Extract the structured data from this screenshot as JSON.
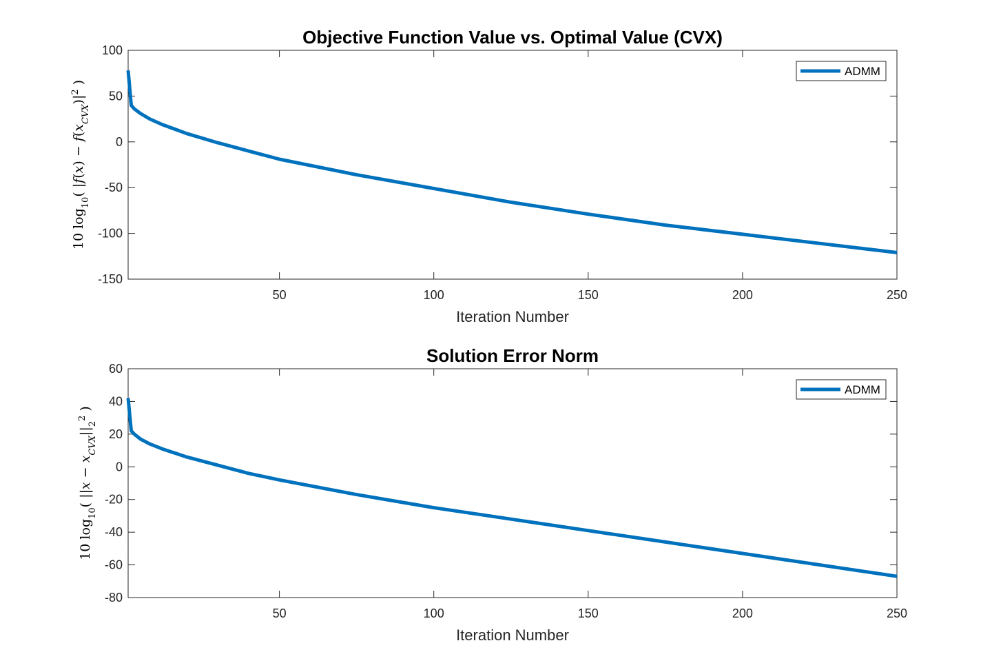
{
  "chart_data": [
    {
      "type": "line",
      "title": "Objective Function Value vs. Optimal Value (CVX)",
      "xlabel": "Iteration Number",
      "ylabel": "10 log10(|f(x) − f(x_CVX)|^2)",
      "xlim": [
        1,
        250
      ],
      "ylim": [
        -150,
        100
      ],
      "xticks": [
        50,
        100,
        150,
        200,
        250
      ],
      "yticks": [
        100,
        50,
        0,
        -50,
        -100,
        -150
      ],
      "grid": false,
      "legend_position": "top-right",
      "series": [
        {
          "name": "ADMM",
          "color": "#0072BD",
          "x": [
            1,
            2,
            3,
            5,
            8,
            12,
            20,
            30,
            40,
            50,
            75,
            100,
            125,
            150,
            175,
            200,
            225,
            250
          ],
          "y": [
            78,
            40,
            36,
            31,
            25,
            19,
            9,
            -1,
            -10,
            -19,
            -36,
            -51,
            -66,
            -79,
            -91,
            -101,
            -111,
            -121
          ]
        }
      ]
    },
    {
      "type": "line",
      "title": "Solution Error Norm",
      "xlabel": "Iteration Number",
      "ylabel": "10 log10(||x − x_CVX||_2^2)",
      "xlim": [
        1,
        250
      ],
      "ylim": [
        -80,
        60
      ],
      "xticks": [
        50,
        100,
        150,
        200,
        250
      ],
      "yticks": [
        60,
        40,
        20,
        0,
        -20,
        -40,
        -60,
        -80
      ],
      "grid": false,
      "legend_position": "top-right",
      "series": [
        {
          "name": "ADMM",
          "color": "#0072BD",
          "x": [
            1,
            2,
            3,
            5,
            8,
            12,
            20,
            30,
            40,
            50,
            75,
            100,
            125,
            150,
            175,
            200,
            225,
            250
          ],
          "y": [
            42,
            22,
            20,
            17,
            14,
            11,
            6,
            1,
            -4,
            -8,
            -17,
            -25,
            -32,
            -39,
            -46,
            -53,
            -60,
            -67
          ]
        }
      ]
    }
  ]
}
